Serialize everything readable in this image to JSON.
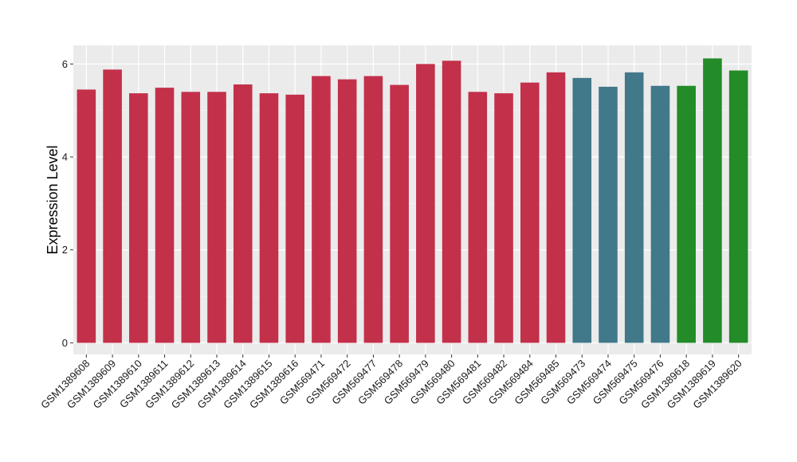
{
  "chart_data": {
    "type": "bar",
    "title": "",
    "xlabel": "",
    "ylabel": "Expression Level",
    "ylim": [
      -0.25,
      6.4
    ],
    "yticks": [
      0,
      2,
      4,
      6
    ],
    "grid": true,
    "legend": "none",
    "background": "#ebebeb",
    "grid_major_color": "#ffffff",
    "categories": [
      "GSM1389608",
      "GSM1389609",
      "GSM1389610",
      "GSM1389611",
      "GSM1389612",
      "GSM1389613",
      "GSM1389614",
      "GSM1389615",
      "GSM1389616",
      "GSM569471",
      "GSM569472",
      "GSM569477",
      "GSM569478",
      "GSM569479",
      "GSM569480",
      "GSM569481",
      "GSM569482",
      "GSM569484",
      "GSM569485",
      "GSM569473",
      "GSM569474",
      "GSM569475",
      "GSM569476",
      "GSM1389618",
      "GSM1389619",
      "GSM1389620"
    ],
    "values": [
      5.45,
      5.88,
      5.37,
      5.49,
      5.4,
      5.4,
      5.56,
      5.37,
      5.34,
      5.74,
      5.67,
      5.74,
      5.55,
      6.0,
      6.07,
      5.4,
      5.37,
      5.6,
      5.82,
      5.7,
      5.51,
      5.82,
      5.53,
      5.53,
      6.12,
      5.86
    ],
    "bar_colors": [
      "#c3304a",
      "#c3304a",
      "#c3304a",
      "#c3304a",
      "#c3304a",
      "#c3304a",
      "#c3304a",
      "#c3304a",
      "#c3304a",
      "#c3304a",
      "#c3304a",
      "#c3304a",
      "#c3304a",
      "#c3304a",
      "#c3304a",
      "#c3304a",
      "#c3304a",
      "#c3304a",
      "#c3304a",
      "#41788a",
      "#41788a",
      "#41788a",
      "#41788a",
      "#238b28",
      "#238b28",
      "#238b28"
    ]
  }
}
